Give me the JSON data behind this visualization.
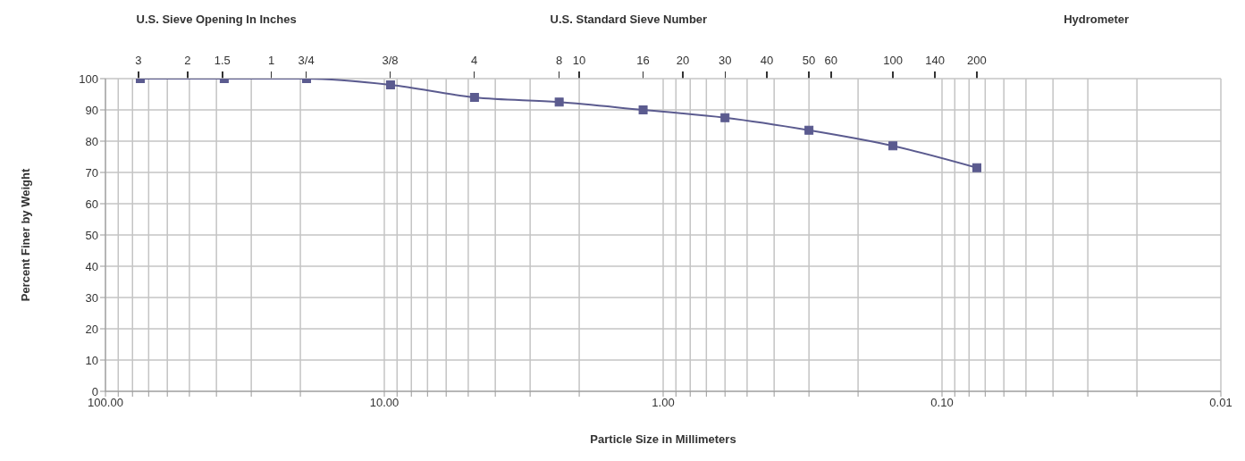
{
  "chart_data": {
    "type": "line",
    "xlabel": "Particle Size in Millimeters",
    "ylabel": "Percent  Finer by Weight",
    "annotations": [
      "U.S. Sieve Opening In Inches",
      "U.S. Standard Sieve Number",
      "Hydrometer",
      "3",
      "2",
      "1.5",
      "1",
      "3/4",
      "3/8",
      "4",
      "8",
      "10",
      "16",
      "20",
      "30",
      "40",
      "50",
      "60",
      "100",
      "140",
      "200"
    ],
    "x": [
      75,
      37.5,
      19,
      9.5,
      4.75,
      2.36,
      1.18,
      0.6,
      0.3,
      0.15,
      0.075
    ],
    "values": [
      100,
      100,
      100,
      98,
      94,
      92.5,
      90,
      87.5,
      83.5,
      78.5,
      71.5
    ],
    "color": "#5b5b8f",
    "marker": "square",
    "line_style": "solid",
    "log": "x",
    "grid": true,
    "xlim": [
      100,
      0.01
    ],
    "xticks": [
      {
        "value": 100,
        "label": "100.00"
      },
      {
        "value": 90,
        "label": null
      },
      {
        "value": 80,
        "label": null
      },
      {
        "value": 70,
        "label": null
      },
      {
        "value": 60,
        "label": null
      },
      {
        "value": 50,
        "label": null
      },
      {
        "value": 40,
        "label": null
      },
      {
        "value": 30,
        "label": null
      },
      {
        "value": 20,
        "label": null
      },
      {
        "value": 10,
        "label": "10.00"
      },
      {
        "value": 9,
        "label": null
      },
      {
        "value": 8,
        "label": null
      },
      {
        "value": 7,
        "label": null
      },
      {
        "value": 6,
        "label": null
      },
      {
        "value": 5,
        "label": null
      },
      {
        "value": 4,
        "label": null
      },
      {
        "value": 3,
        "label": null
      },
      {
        "value": 2,
        "label": null
      },
      {
        "value": 1,
        "label": "1.00"
      },
      {
        "value": 0.9,
        "label": null
      },
      {
        "value": 0.8,
        "label": null
      },
      {
        "value": 0.7,
        "label": null
      },
      {
        "value": 0.6,
        "label": null
      },
      {
        "value": 0.5,
        "label": null
      },
      {
        "value": 0.4,
        "label": null
      },
      {
        "value": 0.3,
        "label": null
      },
      {
        "value": 0.2,
        "label": null
      },
      {
        "value": 0.1,
        "label": "0.10"
      },
      {
        "value": 0.09,
        "label": null
      },
      {
        "value": 0.08,
        "label": null
      },
      {
        "value": 0.07,
        "label": null
      },
      {
        "value": 0.06,
        "label": null
      },
      {
        "value": 0.05,
        "label": null
      },
      {
        "value": 0.04,
        "label": null
      },
      {
        "value": 0.03,
        "label": null
      },
      {
        "value": 0.02,
        "label": null
      },
      {
        "value": 0.01,
        "label": "0.01"
      }
    ],
    "ylim": [
      0,
      100
    ],
    "yticks": [
      0,
      10,
      20,
      30,
      40,
      50,
      60,
      70,
      80,
      90,
      100
    ]
  }
}
